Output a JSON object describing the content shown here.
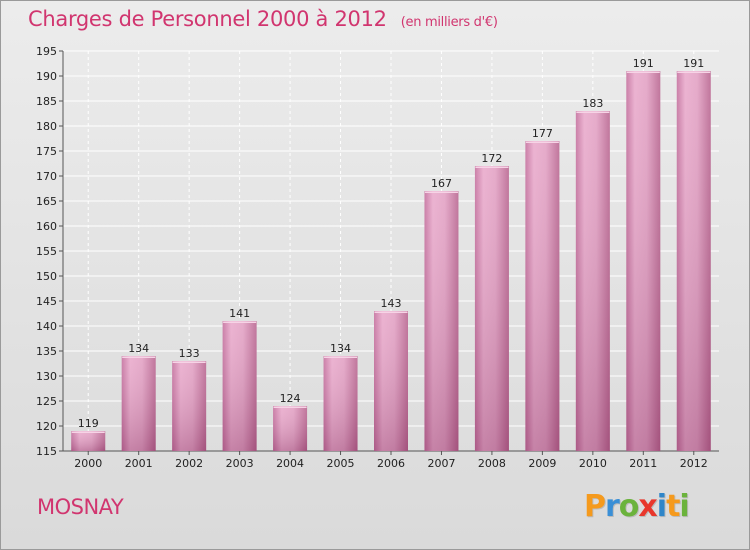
{
  "header": {
    "title": "Charges de Personnel 2000 à 2012",
    "subtitle": "(en milliers d'€)"
  },
  "footer": {
    "commune": "MOSNAY",
    "logo": [
      "P",
      "r",
      "o",
      "x",
      "i",
      "t",
      "i"
    ],
    "logo_colors": [
      "#f59a1d",
      "#3a8fd6",
      "#6bb33c",
      "#e8372c",
      "#2f86c9",
      "#f59a1d",
      "#6bb33c"
    ]
  },
  "chart_data": {
    "type": "bar",
    "title": "Charges de Personnel 2000 à 2012",
    "subtitle": "(en milliers d'€)",
    "categories": [
      "2000",
      "2001",
      "2002",
      "2003",
      "2004",
      "2005",
      "2006",
      "2007",
      "2008",
      "2009",
      "2010",
      "2011",
      "2012"
    ],
    "values": [
      119,
      134,
      133,
      141,
      124,
      134,
      143,
      167,
      172,
      177,
      183,
      191,
      191
    ],
    "ylim": [
      115,
      195
    ],
    "yticks": [
      115,
      120,
      125,
      130,
      135,
      140,
      145,
      150,
      155,
      160,
      165,
      170,
      175,
      180,
      185,
      190,
      195
    ],
    "grid": true,
    "bar_color": "#d98cb4"
  }
}
